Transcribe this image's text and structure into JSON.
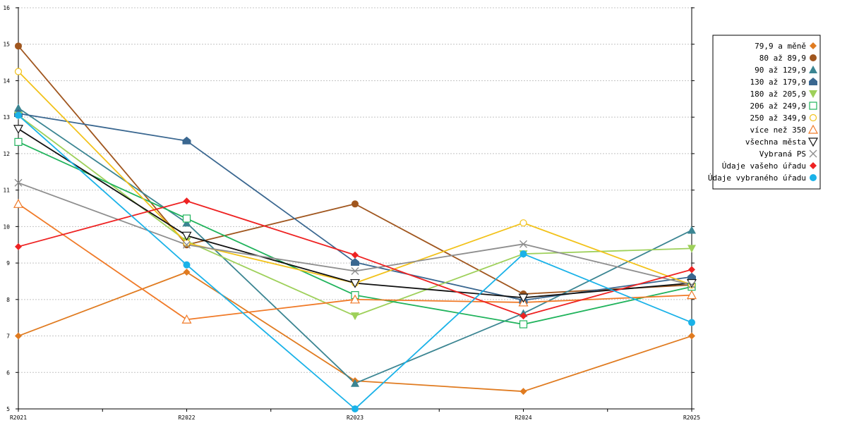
{
  "chart_data": {
    "type": "line",
    "title": "",
    "xlabel": "",
    "ylabel": "",
    "categories": [
      "R2021",
      "R2022",
      "R2023",
      "R2024",
      "R2025"
    ],
    "ylim": [
      5,
      16
    ],
    "yticks": [
      5,
      6,
      7,
      8,
      9,
      10,
      11,
      12,
      13,
      14,
      15,
      16
    ],
    "grid": true,
    "legend_position": "right",
    "series": [
      {
        "name": "79,9 a měně",
        "color": "#e07b20",
        "marker": "diamond-filled",
        "values": [
          7.0,
          8.75,
          5.77,
          5.48,
          7.0
        ]
      },
      {
        "name": "80 až 89,9",
        "color": "#a0561e",
        "marker": "circle-filled",
        "values": [
          14.95,
          9.5,
          10.62,
          8.15,
          8.4
        ]
      },
      {
        "name": "90 až 129,9",
        "color": "#3b8592",
        "marker": "triangle-up-filled",
        "values": [
          13.25,
          10.1,
          5.7,
          7.62,
          9.9
        ]
      },
      {
        "name": "130 až 179,9",
        "color": "#3a6790",
        "marker": "pentagon-filled",
        "values": [
          13.1,
          12.35,
          9.02,
          7.98,
          8.62
        ]
      },
      {
        "name": "180 až 205,9",
        "color": "#9ed05a",
        "marker": "triangle-down-filled",
        "values": [
          13.05,
          9.6,
          7.55,
          9.25,
          9.4
        ]
      },
      {
        "name": "206 až 249,9",
        "color": "#20b35c",
        "marker": "square-open",
        "values": [
          12.32,
          10.22,
          8.12,
          7.32,
          8.35
        ]
      },
      {
        "name": "250 až 349,9",
        "color": "#f2c21a",
        "marker": "circle-open",
        "values": [
          14.25,
          9.55,
          8.45,
          10.1,
          8.4
        ]
      },
      {
        "name": "více než 350",
        "color": "#f07a28",
        "marker": "triangle-up-open",
        "values": [
          10.62,
          7.45,
          8.0,
          7.92,
          8.12
        ]
      },
      {
        "name": "všechna města",
        "color": "#111111",
        "marker": "triangle-down-open",
        "values": [
          12.68,
          9.75,
          8.45,
          8.05,
          8.45
        ]
      },
      {
        "name": "Vybraná PS",
        "color": "#8e8e8e",
        "marker": "x",
        "values": [
          11.2,
          9.5,
          8.78,
          9.52,
          8.4
        ]
      },
      {
        "name": "Údaje vašeho úřadu",
        "color": "#ee2222",
        "marker": "diamond-filled",
        "values": [
          9.45,
          10.7,
          9.22,
          7.55,
          8.82
        ]
      },
      {
        "name": "Údaje vybraného úřadu",
        "color": "#1ab2e8",
        "marker": "circle-filled",
        "values": [
          13.05,
          8.95,
          5.0,
          9.25,
          7.37
        ]
      }
    ]
  }
}
